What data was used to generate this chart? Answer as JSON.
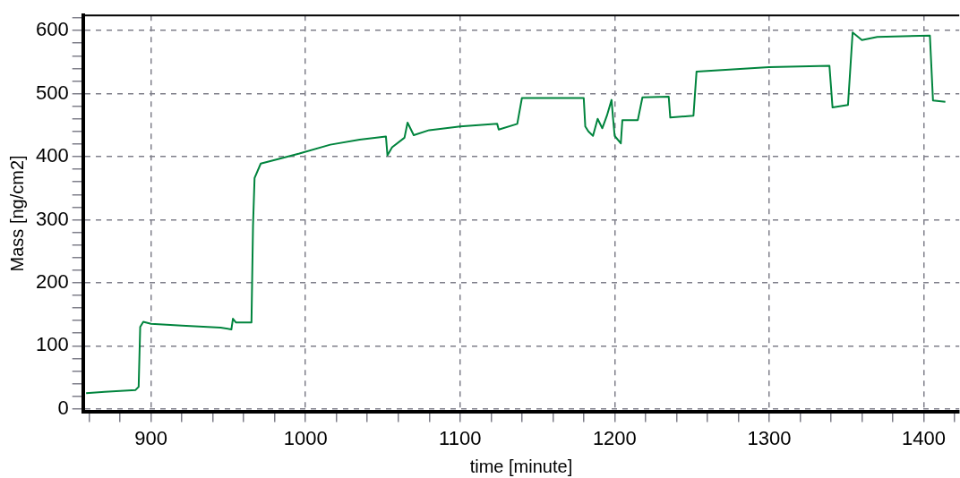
{
  "chart_data": {
    "type": "line",
    "xlabel": "time [minute]",
    "ylabel": "Mass [ng/cm2]",
    "xlim": [
      856,
      1423
    ],
    "xticks": [
      {
        "value": 860,
        "label": null
      },
      {
        "value": 880,
        "label": null
      },
      900,
      {
        "value": 920,
        "label": null
      },
      {
        "value": 940,
        "label": null
      },
      {
        "value": 960,
        "label": null
      },
      {
        "value": 980,
        "label": null
      },
      1000,
      {
        "value": 1020,
        "label": null
      },
      {
        "value": 1040,
        "label": null
      },
      {
        "value": 1060,
        "label": null
      },
      {
        "value": 1080,
        "label": null
      },
      1100,
      {
        "value": 1120,
        "label": null
      },
      {
        "value": 1140,
        "label": null
      },
      {
        "value": 1160,
        "label": null
      },
      {
        "value": 1180,
        "label": null
      },
      1200,
      {
        "value": 1220,
        "label": null
      },
      {
        "value": 1240,
        "label": null
      },
      {
        "value": 1260,
        "label": null
      },
      {
        "value": 1280,
        "label": null
      },
      1300,
      {
        "value": 1320,
        "label": null
      },
      {
        "value": 1340,
        "label": null
      },
      {
        "value": 1360,
        "label": null
      },
      {
        "value": 1380,
        "label": null
      },
      1400,
      {
        "value": 1420,
        "label": null
      }
    ],
    "ylim": [
      -4,
      624
    ],
    "yticks": [
      0,
      {
        "value": 20,
        "label": null
      },
      {
        "value": 40,
        "label": null
      },
      {
        "value": 60,
        "label": null
      },
      {
        "value": 80,
        "label": null
      },
      100,
      {
        "value": 120,
        "label": null
      },
      {
        "value": 140,
        "label": null
      },
      {
        "value": 160,
        "label": null
      },
      {
        "value": 180,
        "label": null
      },
      200,
      {
        "value": 220,
        "label": null
      },
      {
        "value": 240,
        "label": null
      },
      {
        "value": 260,
        "label": null
      },
      {
        "value": 280,
        "label": null
      },
      300,
      {
        "value": 320,
        "label": null
      },
      {
        "value": 340,
        "label": null
      },
      {
        "value": 360,
        "label": null
      },
      {
        "value": 380,
        "label": null
      },
      400,
      {
        "value": 420,
        "label": null
      },
      {
        "value": 440,
        "label": null
      },
      {
        "value": 460,
        "label": null
      },
      {
        "value": 480,
        "label": null
      },
      500,
      {
        "value": 520,
        "label": null
      },
      {
        "value": 540,
        "label": null
      },
      {
        "value": 560,
        "label": null
      },
      {
        "value": 580,
        "label": null
      },
      600,
      {
        "value": 620,
        "label": null
      }
    ],
    "grid": true,
    "legend": false,
    "marker": "none",
    "line_style": "solid",
    "series": [
      {
        "color": "#00843d",
        "x": [
          858,
          870,
          890,
          892,
          893,
          895,
          900,
          920,
          945,
          952,
          953,
          955,
          965,
          966,
          967,
          971,
          985,
          996,
          1016,
          1035,
          1052,
          1053,
          1056,
          1064,
          1066,
          1070,
          1080,
          1100,
          1124,
          1125,
          1137,
          1140,
          1180,
          1181,
          1183,
          1186,
          1189,
          1192,
          1195,
          1198,
          1199,
          1200,
          1204,
          1205,
          1215,
          1218,
          1235,
          1236,
          1251,
          1253,
          1300,
          1339,
          1341,
          1351,
          1354,
          1360,
          1370,
          1404,
          1406,
          1414
        ],
        "values": [
          25,
          27,
          30,
          35,
          130,
          138,
          135,
          132,
          129,
          126,
          143,
          137,
          137,
          290,
          366,
          389,
          398,
          405,
          419,
          427,
          432,
          402,
          415,
          430,
          454,
          434,
          442,
          448,
          452,
          443,
          452,
          493,
          493,
          448,
          440,
          433,
          460,
          445,
          465,
          490,
          460,
          433,
          421,
          458,
          458,
          494,
          495,
          462,
          465,
          535,
          542,
          544,
          478,
          482,
          597,
          585,
          590,
          592,
          489,
          487
        ]
      }
    ]
  }
}
